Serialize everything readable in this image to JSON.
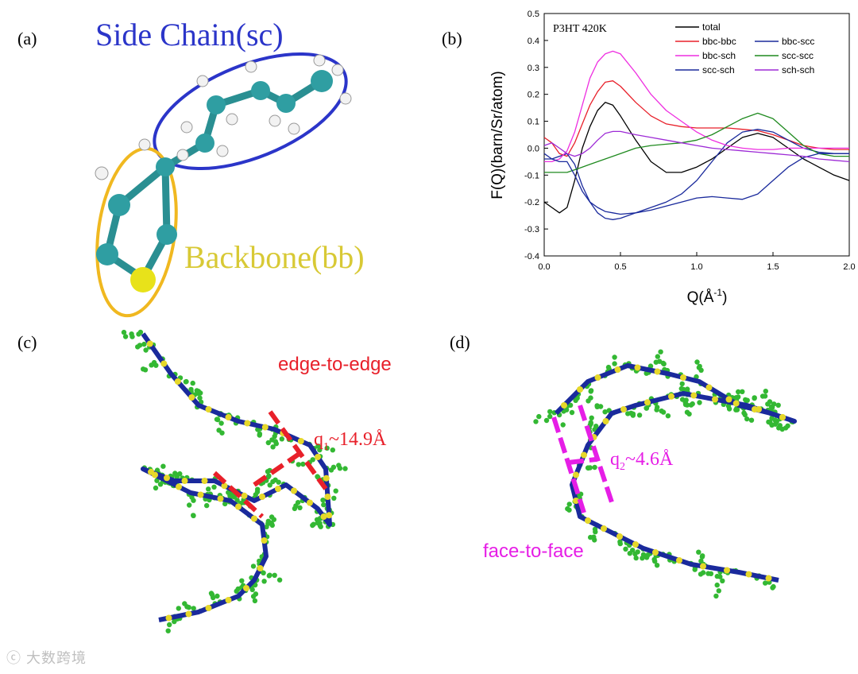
{
  "panels": {
    "a": "(a)",
    "b": "(b)",
    "c": "(c)",
    "d": "(d)"
  },
  "panel_a": {
    "side_chain_label": "Side Chain(sc)",
    "side_chain_color": "#2b35c9",
    "backbone_label": "Backbone(bb)",
    "backbone_color": "#d8c935"
  },
  "panel_c": {
    "edge_label": "edge-to-edge",
    "q_main": "q",
    "q_sub": "1",
    "q_rest": "~14.9Å",
    "color": "#e8202a"
  },
  "panel_d": {
    "face_label": "face-to-face",
    "q_main": "q",
    "q_sub": "2",
    "q_rest": "~4.6Å",
    "color": "#e61ee6"
  },
  "watermark": "大数跨境",
  "chart_data": {
    "type": "line",
    "title": "P3HT 420K",
    "xlabel": "Q(Å",
    "xlabel_sup": "-1",
    "xlabel_end": ")",
    "ylabel": "F(Q)(barn/Sr/atom)",
    "xlim": [
      0.0,
      2.0
    ],
    "ylim": [
      -0.4,
      0.5
    ],
    "xticks": [
      "0.0",
      "0.5",
      "1.0",
      "1.5",
      "2.0"
    ],
    "yticks": [
      "-0.4",
      "-0.3",
      "-0.2",
      "-0.1",
      "0.0",
      "0.1",
      "0.2",
      "0.3",
      "0.4",
      "0.5"
    ],
    "legend_position": "top-right",
    "series": [
      {
        "name": "total",
        "color": "#000000",
        "x": [
          0.0,
          0.05,
          0.1,
          0.15,
          0.2,
          0.25,
          0.3,
          0.35,
          0.4,
          0.45,
          0.5,
          0.6,
          0.7,
          0.8,
          0.9,
          1.0,
          1.1,
          1.2,
          1.3,
          1.4,
          1.5,
          1.6,
          1.7,
          1.8,
          1.9,
          2.0
        ],
        "y": [
          -0.2,
          -0.22,
          -0.24,
          -0.22,
          -0.12,
          0.0,
          0.08,
          0.14,
          0.17,
          0.16,
          0.12,
          0.03,
          -0.05,
          -0.09,
          -0.09,
          -0.07,
          -0.04,
          0.0,
          0.04,
          0.055,
          0.04,
          0.0,
          -0.04,
          -0.07,
          -0.1,
          -0.12
        ]
      },
      {
        "name": "bbc-bbc",
        "color": "#e8202a",
        "x": [
          0.0,
          0.05,
          0.1,
          0.15,
          0.2,
          0.25,
          0.3,
          0.35,
          0.4,
          0.45,
          0.5,
          0.6,
          0.7,
          0.8,
          0.9,
          1.0,
          1.1,
          1.2,
          1.3,
          1.4,
          1.5,
          1.6,
          1.7,
          1.8,
          1.9,
          2.0
        ],
        "y": [
          0.04,
          0.02,
          -0.02,
          -0.03,
          0.02,
          0.09,
          0.16,
          0.21,
          0.245,
          0.25,
          0.23,
          0.17,
          0.12,
          0.09,
          0.08,
          0.075,
          0.075,
          0.075,
          0.07,
          0.065,
          0.05,
          0.03,
          0.01,
          0.0,
          -0.005,
          -0.005
        ]
      },
      {
        "name": "bbc-scc",
        "color": "#1a2a9c",
        "x": [
          0.0,
          0.05,
          0.1,
          0.15,
          0.2,
          0.25,
          0.3,
          0.35,
          0.4,
          0.45,
          0.5,
          0.6,
          0.7,
          0.8,
          0.9,
          1.0,
          1.1,
          1.2,
          1.3,
          1.4,
          1.5,
          1.6,
          1.7,
          1.8,
          1.9,
          2.0
        ],
        "y": [
          -0.04,
          -0.04,
          -0.03,
          -0.02,
          -0.06,
          -0.14,
          -0.2,
          -0.24,
          -0.26,
          -0.265,
          -0.26,
          -0.24,
          -0.22,
          -0.2,
          -0.17,
          -0.12,
          -0.05,
          0.02,
          0.06,
          0.07,
          0.06,
          0.03,
          0.0,
          -0.015,
          -0.02,
          -0.02
        ]
      },
      {
        "name": "bbc-sch",
        "color": "#ee2ee0",
        "x": [
          0.0,
          0.05,
          0.1,
          0.15,
          0.2,
          0.25,
          0.3,
          0.35,
          0.4,
          0.45,
          0.5,
          0.6,
          0.7,
          0.8,
          0.9,
          1.0,
          1.1,
          1.2,
          1.3,
          1.4,
          1.5,
          1.6,
          1.7,
          1.8,
          1.9,
          2.0
        ],
        "y": [
          -0.05,
          -0.05,
          -0.04,
          -0.01,
          0.06,
          0.16,
          0.26,
          0.32,
          0.35,
          0.36,
          0.35,
          0.28,
          0.2,
          0.14,
          0.1,
          0.06,
          0.03,
          0.01,
          0.0,
          -0.005,
          -0.005,
          0.0,
          0.0,
          0.0,
          0.0,
          0.0
        ]
      },
      {
        "name": "scc-scc",
        "color": "#1f8a1f",
        "x": [
          0.0,
          0.05,
          0.1,
          0.15,
          0.2,
          0.25,
          0.3,
          0.35,
          0.4,
          0.45,
          0.5,
          0.6,
          0.7,
          0.8,
          0.9,
          1.0,
          1.1,
          1.2,
          1.3,
          1.4,
          1.5,
          1.6,
          1.7,
          1.8,
          1.9,
          2.0
        ],
        "y": [
          -0.09,
          -0.09,
          -0.09,
          -0.09,
          -0.08,
          -0.07,
          -0.06,
          -0.05,
          -0.04,
          -0.03,
          -0.02,
          0.0,
          0.01,
          0.015,
          0.02,
          0.03,
          0.05,
          0.08,
          0.11,
          0.13,
          0.11,
          0.06,
          0.01,
          -0.02,
          -0.03,
          -0.03
        ]
      },
      {
        "name": "scc-sch",
        "color": "#1a2a9c",
        "x": [
          0.0,
          0.05,
          0.1,
          0.15,
          0.2,
          0.25,
          0.3,
          0.35,
          0.4,
          0.45,
          0.5,
          0.6,
          0.7,
          0.8,
          0.9,
          1.0,
          1.1,
          1.2,
          1.3,
          1.4,
          1.5,
          1.6,
          1.7,
          1.8,
          1.9,
          2.0
        ],
        "y": [
          -0.02,
          -0.04,
          -0.05,
          -0.05,
          -0.1,
          -0.16,
          -0.2,
          -0.22,
          -0.235,
          -0.24,
          -0.245,
          -0.24,
          -0.23,
          -0.215,
          -0.2,
          -0.185,
          -0.18,
          -0.185,
          -0.19,
          -0.17,
          -0.12,
          -0.07,
          -0.035,
          -0.02,
          -0.02,
          -0.02
        ]
      },
      {
        "name": "sch-sch",
        "color": "#9d2ad6",
        "x": [
          0.0,
          0.05,
          0.1,
          0.15,
          0.2,
          0.25,
          0.3,
          0.35,
          0.4,
          0.45,
          0.5,
          0.6,
          0.7,
          0.8,
          0.9,
          1.0,
          1.1,
          1.2,
          1.3,
          1.4,
          1.5,
          1.6,
          1.7,
          1.8,
          1.9,
          2.0
        ],
        "y": [
          0.01,
          0.02,
          0.0,
          -0.02,
          -0.03,
          -0.02,
          0.0,
          0.03,
          0.055,
          0.062,
          0.062,
          0.05,
          0.04,
          0.03,
          0.02,
          0.01,
          0.0,
          -0.005,
          -0.01,
          -0.015,
          -0.02,
          -0.025,
          -0.03,
          -0.04,
          -0.045,
          -0.05
        ]
      }
    ]
  }
}
